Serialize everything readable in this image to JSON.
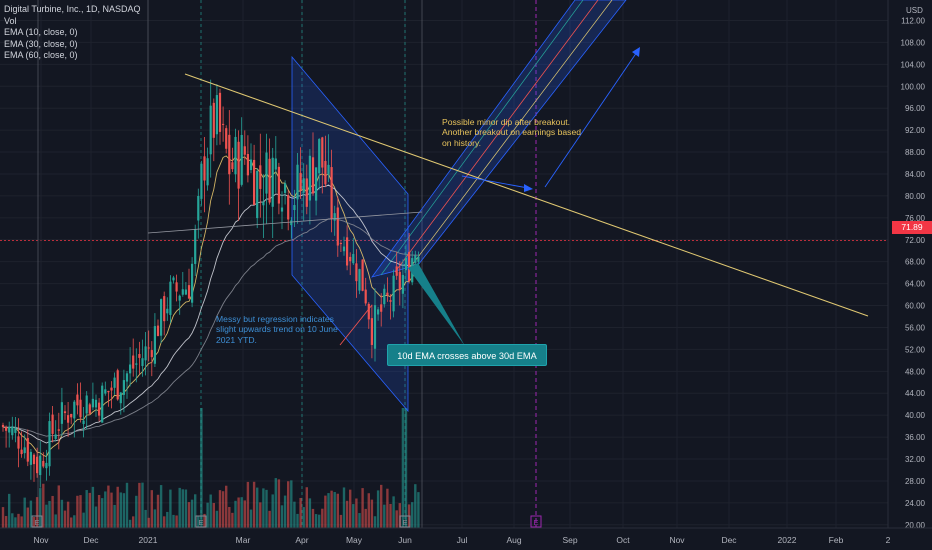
{
  "legend": {
    "title": "Digital Turbine, Inc., 1D, NASDAQ",
    "vol": "Vol",
    "ema10": "EMA (10, close, 0)",
    "ema30": "EMA (30, close, 0)",
    "ema60": "EMA (60, close, 0)"
  },
  "price_axis": {
    "currency": "USD",
    "current_price": "71.89",
    "ticks": [
      "112.00",
      "108.00",
      "104.00",
      "100.00",
      "96.00",
      "92.00",
      "88.00",
      "84.00",
      "80.00",
      "76.00",
      "72.00",
      "68.00",
      "64.00",
      "60.00",
      "56.00",
      "52.00",
      "48.00",
      "44.00",
      "40.00",
      "36.00",
      "32.00",
      "28.00",
      "24.00",
      "20.00"
    ]
  },
  "time_axis": {
    "ticks": [
      "Nov",
      "Dec",
      "2021",
      "Mar",
      "Apr",
      "May",
      "Jun",
      "Jul",
      "Aug",
      "Sep",
      "Oct",
      "Nov",
      "Dec",
      "2022",
      "Feb",
      "2"
    ]
  },
  "annotations": {
    "yellow_note": "Possible minor dip after breakout. Another breakout on earnings based on history.",
    "blue_note": "Messy but regression indicates slight upwards trend on 10 June 2021 YTD.",
    "callout": "10d EMA crosses above 30d EMA"
  },
  "earnings_marker": "E",
  "colors": {
    "background": "#131722",
    "up": "#26a69a",
    "down": "#ef5350",
    "trendline": "#e0c872",
    "channel": "#2962ff",
    "price_tag": "#f23645",
    "callout": "#16808a"
  },
  "chart_data": {
    "type": "candlestick",
    "title": "Digital Turbine, Inc., 1D, NASDAQ",
    "last_close": 71.89,
    "ylim": [
      20,
      112
    ],
    "x_months": [
      "Nov",
      "Dec",
      "2021",
      "Mar",
      "Apr",
      "May",
      "Jun",
      "Jul",
      "Aug",
      "Sep",
      "Oct",
      "Nov",
      "Dec",
      "2022",
      "Feb"
    ],
    "monthly_close_approx": [
      {
        "month": "Nov",
        "close": 36
      },
      {
        "month": "Dec",
        "close": 43
      },
      {
        "month": "2021",
        "close": 58
      },
      {
        "month": "Feb",
        "close": 90
      },
      {
        "month": "Mar",
        "close": 80
      },
      {
        "month": "Apr",
        "close": 86
      },
      {
        "month": "May",
        "close": 60
      },
      {
        "month": "Jun",
        "close": 71.89
      }
    ],
    "indicators": [
      "EMA (10, close, 0)",
      "EMA (30, close, 0)",
      "EMA (60, close, 0)"
    ]
  }
}
